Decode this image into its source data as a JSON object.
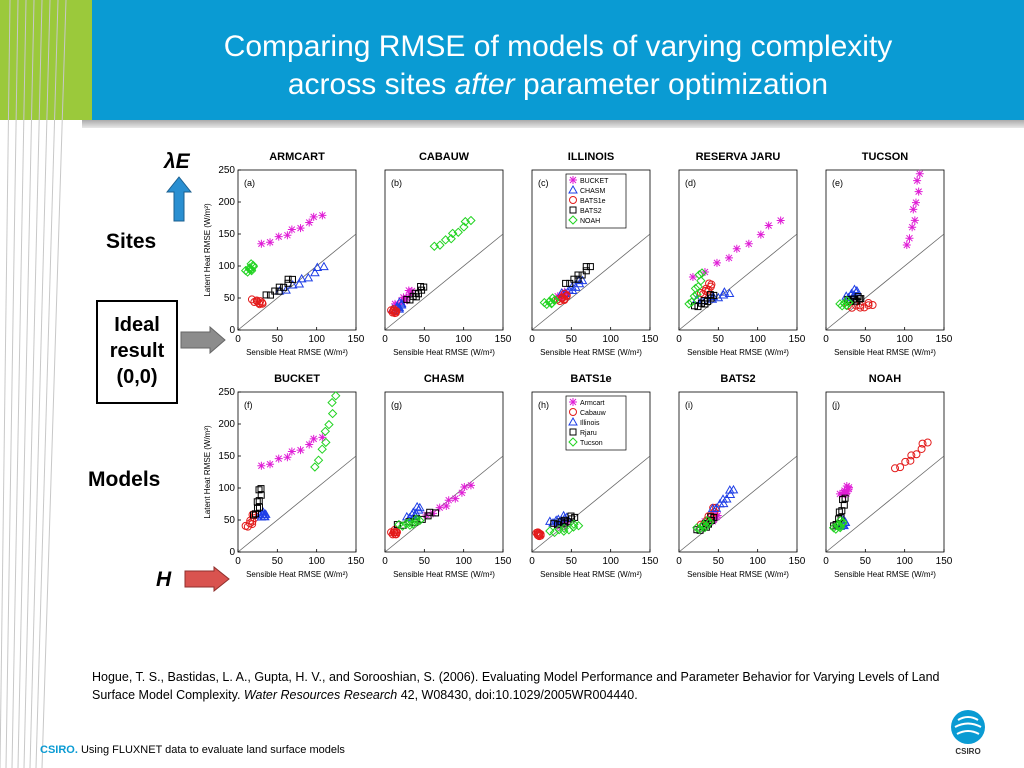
{
  "slide": {
    "title_line1": "Comparing RMSE of models of varying complexity",
    "title_line2_a": "across sites ",
    "title_line2_em": "after",
    "title_line2_b": " parameter optimization",
    "lambda_label": "λE",
    "sites_label": "Sites",
    "ideal_line1": "Ideal",
    "ideal_line2": "result",
    "ideal_line3": "(0,0)",
    "models_label": "Models",
    "h_label": "H",
    "citation_a": "Hogue, T. S., Bastidas, L. A., Gupta, H. V., and Sorooshian, S. (2006). Evaluating Model Performance and Parameter Behavior for Varying Levels of Land Surface Model Complexity. ",
    "citation_journal": "Water Resources Research",
    "citation_b": " 42, W08430, doi:10.1029/2005WR004440.",
    "footer_brand": "CSIRO.",
    "footer_text": " Using FLUXNET data to evaluate land surface models",
    "logo_text": "CSIRO"
  },
  "colors": {
    "header": "#0a9bd3",
    "green": "#9bc93b",
    "arrow_up": "#2a8fd1",
    "arrow_h": "#d9534f",
    "arrow_grey": "#8c8c8c"
  },
  "chart_data": {
    "type": "scatter",
    "x_label": "Sensible Heat RMSE (W/m²)",
    "y_label": "Latent Heat RMSE (W/m²)",
    "xlim": [
      0,
      150
    ],
    "ylim": [
      0,
      250
    ],
    "xticks": [
      "0",
      "50",
      "100",
      "150"
    ],
    "yticks": [
      "0",
      "50",
      "100",
      "150",
      "200",
      "250"
    ],
    "markers": {
      "model": {
        "BUCKET": {
          "shape": "star",
          "color": "#e01ed6"
        },
        "CHASM": {
          "shape": "triangle",
          "color": "#1f3fe6"
        },
        "BATS1e": {
          "shape": "circle",
          "color": "#e31b1b"
        },
        "BATS2": {
          "shape": "square",
          "color": "#000000"
        },
        "NOAH": {
          "shape": "diamond",
          "color": "#22d322"
        }
      },
      "site": {
        "Armcart": {
          "shape": "star",
          "color": "#e01ed6"
        },
        "Cabauw": {
          "shape": "circle",
          "color": "#e31b1b"
        },
        "Illinois": {
          "shape": "triangle",
          "color": "#1f3fe6"
        },
        "Rjaru": {
          "shape": "square",
          "color": "#000000"
        },
        "Tucson": {
          "shape": "diamond",
          "color": "#22d322"
        }
      }
    },
    "panels": [
      {
        "letter": "(a)",
        "title": "ARMCART",
        "legend": null,
        "series": [
          {
            "name": "BUCKET",
            "key": "BUCKET",
            "x0": 32,
            "y0": 132,
            "x1": 108,
            "y1": 180
          },
          {
            "name": "CHASM",
            "key": "CHASM",
            "x0": 55,
            "y0": 58,
            "x1": 110,
            "y1": 100
          },
          {
            "name": "BATS1e",
            "key": "BATS1e",
            "x0": 20,
            "y0": 45,
            "x1": 32,
            "y1": 42
          },
          {
            "name": "BATS2",
            "key": "BATS2",
            "x0": 38,
            "y0": 52,
            "x1": 70,
            "y1": 80
          },
          {
            "name": "NOAH",
            "key": "NOAH",
            "x0": 12,
            "y0": 90,
            "x1": 20,
            "y1": 102
          }
        ]
      },
      {
        "letter": "(b)",
        "title": "CABAUW",
        "legend": null,
        "series": [
          {
            "name": "BUCKET",
            "key": "BUCKET",
            "x0": 15,
            "y0": 38,
            "x1": 35,
            "y1": 62
          },
          {
            "name": "CHASM",
            "key": "CHASM",
            "x0": 12,
            "y0": 30,
            "x1": 22,
            "y1": 42
          },
          {
            "name": "BATS1e",
            "key": "BATS1e",
            "x0": 10,
            "y0": 28,
            "x1": 14,
            "y1": 30
          },
          {
            "name": "BATS2",
            "key": "BATS2",
            "x0": 30,
            "y0": 45,
            "x1": 50,
            "y1": 68
          },
          {
            "name": "NOAH",
            "key": "NOAH",
            "x0": 65,
            "y0": 128,
            "x1": 110,
            "y1": 172
          }
        ]
      },
      {
        "letter": "(c)",
        "title": "ILLINOIS",
        "legend": "model",
        "series": [
          {
            "name": "BUCKET",
            "key": "BUCKET",
            "x0": 35,
            "y0": 50,
            "x1": 45,
            "y1": 58
          },
          {
            "name": "CHASM",
            "key": "CHASM",
            "x0": 40,
            "y0": 55,
            "x1": 65,
            "y1": 78
          },
          {
            "name": "BATS1e",
            "key": "BATS1e",
            "x0": 35,
            "y0": 45,
            "x1": 45,
            "y1": 55
          },
          {
            "name": "BATS2",
            "key": "BATS2",
            "x0": 45,
            "y0": 70,
            "x1": 75,
            "y1": 100
          },
          {
            "name": "NOAH",
            "key": "NOAH",
            "x0": 18,
            "y0": 40,
            "x1": 30,
            "y1": 48
          }
        ]
      },
      {
        "letter": "(d)",
        "title": "RESERVA JARU",
        "legend": null,
        "series": [
          {
            "name": "BUCKET",
            "key": "BUCKET",
            "x0": 20,
            "y0": 80,
            "x1": 130,
            "y1": 172
          },
          {
            "name": "CHASM",
            "key": "CHASM",
            "x0": 25,
            "y0": 45,
            "x1": 65,
            "y1": 58
          },
          {
            "name": "BATS1e",
            "key": "BATS1e",
            "x0": 30,
            "y0": 55,
            "x1": 42,
            "y1": 72
          },
          {
            "name": "BATS2",
            "key": "BATS2",
            "x0": 22,
            "y0": 35,
            "x1": 45,
            "y1": 55
          },
          {
            "name": "NOAH",
            "key": "NOAH",
            "x0": 15,
            "y0": 38,
            "x1": 30,
            "y1": 90
          }
        ]
      },
      {
        "letter": "(e)",
        "title": "TUCSON",
        "legend": null,
        "series": [
          {
            "name": "BUCKET",
            "key": "BUCKET",
            "x0": 105,
            "y0": 130,
            "x1": 120,
            "y1": 245
          },
          {
            "name": "CHASM",
            "key": "CHASM",
            "x0": 28,
            "y0": 50,
            "x1": 40,
            "y1": 62
          },
          {
            "name": "BATS1e",
            "key": "BATS1e",
            "x0": 30,
            "y0": 35,
            "x1": 60,
            "y1": 40
          },
          {
            "name": "BATS2",
            "key": "BATS2",
            "x0": 30,
            "y0": 45,
            "x1": 45,
            "y1": 50
          },
          {
            "name": "NOAH",
            "key": "NOAH",
            "x0": 20,
            "y0": 38,
            "x1": 30,
            "y1": 44
          }
        ]
      },
      {
        "letter": "(f)",
        "title": "BUCKET",
        "legend": null,
        "series": [
          {
            "name": "Armcart",
            "key": "Armcart",
            "x0": 32,
            "y0": 132,
            "x1": 108,
            "y1": 180
          },
          {
            "name": "Cabauw",
            "key": "Cabauw",
            "x0": 12,
            "y0": 38,
            "x1": 22,
            "y1": 58
          },
          {
            "name": "Illinois",
            "key": "Illinois",
            "x0": 30,
            "y0": 55,
            "x1": 35,
            "y1": 60
          },
          {
            "name": "Rjaru",
            "key": "Rjaru",
            "x0": 22,
            "y0": 55,
            "x1": 30,
            "y1": 100
          },
          {
            "name": "Tucson",
            "key": "Tucson",
            "x0": 100,
            "y0": 130,
            "x1": 125,
            "y1": 245
          }
        ]
      },
      {
        "letter": "(g)",
        "title": "CHASM",
        "legend": null,
        "series": [
          {
            "name": "Armcart",
            "key": "Armcart",
            "x0": 55,
            "y0": 55,
            "x1": 110,
            "y1": 105
          },
          {
            "name": "Cabauw",
            "key": "Cabauw",
            "x0": 10,
            "y0": 28,
            "x1": 15,
            "y1": 32
          },
          {
            "name": "Illinois",
            "key": "Illinois",
            "x0": 30,
            "y0": 52,
            "x1": 45,
            "y1": 70
          },
          {
            "name": "Rjaru",
            "key": "Rjaru",
            "x0": 18,
            "y0": 40,
            "x1": 65,
            "y1": 62
          },
          {
            "name": "Tucson",
            "key": "Tucson",
            "x0": 20,
            "y0": 40,
            "x1": 45,
            "y1": 50
          }
        ]
      },
      {
        "letter": "(h)",
        "title": "BATS1e",
        "legend": "site",
        "series": [
          {
            "name": "Armcart",
            "key": "Armcart",
            "x0": 35,
            "y0": 40,
            "x1": 45,
            "y1": 45
          },
          {
            "name": "Cabauw",
            "key": "Cabauw",
            "x0": 8,
            "y0": 27,
            "x1": 10,
            "y1": 28
          },
          {
            "name": "Illinois",
            "key": "Illinois",
            "x0": 25,
            "y0": 45,
            "x1": 45,
            "y1": 55
          },
          {
            "name": "Rjaru",
            "key": "Rjaru",
            "x0": 30,
            "y0": 42,
            "x1": 55,
            "y1": 55
          },
          {
            "name": "Tucson",
            "key": "Tucson",
            "x0": 25,
            "y0": 30,
            "x1": 60,
            "y1": 42
          }
        ]
      },
      {
        "letter": "(i)",
        "title": "BATS2",
        "legend": null,
        "series": [
          {
            "name": "Armcart",
            "key": "Armcart",
            "x0": 35,
            "y0": 45,
            "x1": 50,
            "y1": 58
          },
          {
            "name": "Cabauw",
            "key": "Cabauw",
            "x0": 30,
            "y0": 40,
            "x1": 48,
            "y1": 70
          },
          {
            "name": "Illinois",
            "key": "Illinois",
            "x0": 45,
            "y0": 65,
            "x1": 70,
            "y1": 98
          },
          {
            "name": "Rjaru",
            "key": "Rjaru",
            "x0": 25,
            "y0": 32,
            "x1": 45,
            "y1": 55
          },
          {
            "name": "Tucson",
            "key": "Tucson",
            "x0": 25,
            "y0": 35,
            "x1": 40,
            "y1": 48
          }
        ]
      },
      {
        "letter": "(j)",
        "title": "NOAH",
        "legend": null,
        "series": [
          {
            "name": "Armcart",
            "key": "Armcart",
            "x0": 20,
            "y0": 88,
            "x1": 30,
            "y1": 102
          },
          {
            "name": "Cabauw",
            "key": "Cabauw",
            "x0": 90,
            "y0": 128,
            "x1": 130,
            "y1": 172
          },
          {
            "name": "Illinois",
            "key": "Illinois",
            "x0": 18,
            "y0": 40,
            "x1": 25,
            "y1": 48
          },
          {
            "name": "Rjaru",
            "key": "Rjaru",
            "x0": 12,
            "y0": 38,
            "x1": 25,
            "y1": 85
          },
          {
            "name": "Tucson",
            "key": "Tucson",
            "x0": 12,
            "y0": 35,
            "x1": 22,
            "y1": 48
          }
        ]
      }
    ]
  }
}
